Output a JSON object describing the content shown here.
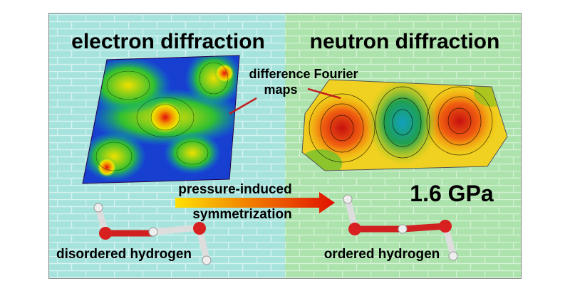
{
  "panels": {
    "left": {
      "title": "electron diffraction",
      "caption": "disordered hydrogen"
    },
    "right": {
      "title": "neutron diffraction",
      "caption": "ordered hydrogen"
    }
  },
  "annotation": {
    "lines": [
      "difference Fourier",
      "maps"
    ]
  },
  "arrow": {
    "lines": [
      "pressure-induced",
      "symmetrization"
    ]
  },
  "pressure": "1.6 GPa"
}
